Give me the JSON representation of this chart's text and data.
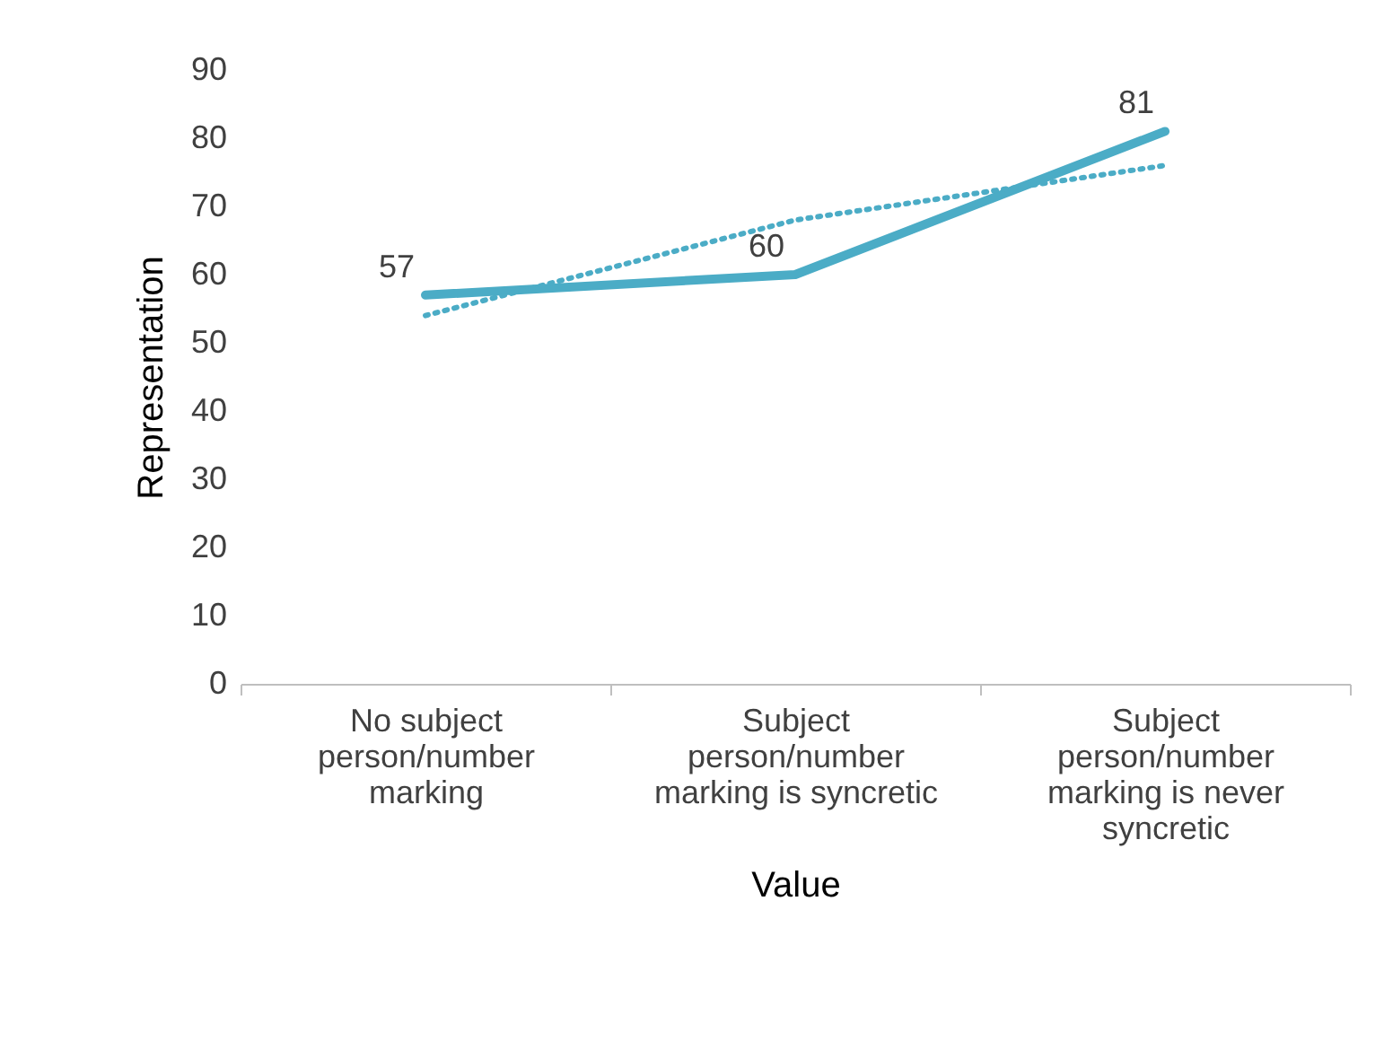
{
  "chart_data": {
    "type": "line",
    "xlabel": "Value",
    "ylabel": "Representation",
    "categories": [
      "No subject person/number marking",
      "Subject person/number marking is syncretic",
      "Subject person/number marking is never syncretic"
    ],
    "series": [
      {
        "type": "line",
        "color": "#4bacc6",
        "values": [
          57,
          60,
          81
        ],
        "data_labels": true,
        "line_style": "solid"
      },
      {
        "type": "line",
        "color": "#4bacc6",
        "values": [
          54,
          68,
          76
        ],
        "line_style": "dotted"
      }
    ],
    "ylim": [
      0,
      90
    ],
    "yticks": [
      0,
      10,
      20,
      30,
      40,
      50,
      60,
      70,
      80,
      90
    ],
    "grid": false,
    "legend": false,
    "marker": "none"
  }
}
